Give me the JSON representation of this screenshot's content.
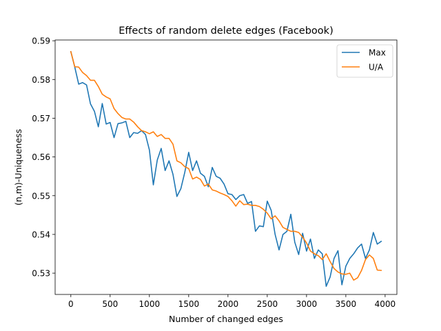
{
  "chart_data": {
    "type": "line",
    "title": "Effects of random delete edges (Facebook)",
    "xlabel": "Number of changed edges",
    "ylabel": "(n,m)-Uniqueness",
    "xlim": [
      -200,
      4150
    ],
    "ylim": [
      0.5245,
      0.5902
    ],
    "xticks": [
      0,
      500,
      1000,
      1500,
      2000,
      2500,
      3000,
      3500,
      4000
    ],
    "xtick_labels": [
      "0",
      "500",
      "1000",
      "1500",
      "2000",
      "2500",
      "3000",
      "3500",
      "4000"
    ],
    "yticks": [
      0.53,
      0.54,
      0.55,
      0.56,
      0.57,
      0.58,
      0.59
    ],
    "ytick_labels": [
      "0.53",
      "0.54",
      "0.55",
      "0.56",
      "0.57",
      "0.58",
      "0.59"
    ],
    "grid": false,
    "legend_position": "upper right",
    "x": [
      0,
      50,
      100,
      150,
      200,
      250,
      300,
      350,
      400,
      450,
      500,
      550,
      600,
      650,
      700,
      750,
      800,
      850,
      900,
      950,
      1000,
      1050,
      1100,
      1150,
      1200,
      1250,
      1300,
      1350,
      1400,
      1450,
      1500,
      1550,
      1600,
      1650,
      1700,
      1750,
      1800,
      1850,
      1900,
      1950,
      2000,
      2050,
      2100,
      2150,
      2200,
      2250,
      2300,
      2350,
      2400,
      2450,
      2500,
      2550,
      2600,
      2650,
      2700,
      2750,
      2800,
      2850,
      2900,
      2950,
      3000,
      3050,
      3100,
      3150,
      3200,
      3250,
      3300,
      3350,
      3400,
      3450,
      3500,
      3550,
      3600,
      3650,
      3700,
      3750,
      3800,
      3850,
      3900,
      3950
    ],
    "series": [
      {
        "name": "Max",
        "color": "#1f77b4",
        "values": [
          0.5872,
          0.5832,
          0.5788,
          0.5792,
          0.5786,
          0.5737,
          0.5718,
          0.5678,
          0.5738,
          0.5685,
          0.5689,
          0.565,
          0.5686,
          0.5688,
          0.5692,
          0.565,
          0.5663,
          0.5661,
          0.5668,
          0.5658,
          0.5618,
          0.5528,
          0.5592,
          0.5622,
          0.5565,
          0.559,
          0.5555,
          0.5498,
          0.5518,
          0.556,
          0.5612,
          0.5565,
          0.559,
          0.5558,
          0.555,
          0.5523,
          0.5573,
          0.555,
          0.5545,
          0.553,
          0.5505,
          0.5503,
          0.549,
          0.55,
          0.5503,
          0.548,
          0.5485,
          0.5408,
          0.5422,
          0.542,
          0.5486,
          0.5462,
          0.54,
          0.536,
          0.54,
          0.5408,
          0.5452,
          0.538,
          0.5348,
          0.5403,
          0.5357,
          0.5388,
          0.5338,
          0.536,
          0.535,
          0.5266,
          0.529,
          0.5338,
          0.5358,
          0.527,
          0.5318,
          0.5338,
          0.535,
          0.5365,
          0.5375,
          0.5338,
          0.536,
          0.5405,
          0.5375,
          0.5382
        ]
      },
      {
        "name": "U/A",
        "color": "#ff7f0e",
        "values": [
          0.5872,
          0.5833,
          0.5832,
          0.5818,
          0.581,
          0.5798,
          0.5798,
          0.5782,
          0.5762,
          0.5755,
          0.575,
          0.5725,
          0.5712,
          0.5702,
          0.5698,
          0.5698,
          0.569,
          0.5678,
          0.5668,
          0.5665,
          0.566,
          0.5665,
          0.5653,
          0.5658,
          0.5648,
          0.5648,
          0.5633,
          0.559,
          0.5585,
          0.5575,
          0.557,
          0.5543,
          0.5548,
          0.5542,
          0.5525,
          0.553,
          0.5515,
          0.5512,
          0.5507,
          0.5503,
          0.5498,
          0.5487,
          0.5473,
          0.5487,
          0.5477,
          0.5478,
          0.5475,
          0.5475,
          0.5472,
          0.5465,
          0.5455,
          0.544,
          0.5448,
          0.5435,
          0.5418,
          0.5413,
          0.5408,
          0.5408,
          0.5405,
          0.5393,
          0.5378,
          0.5357,
          0.535,
          0.5345,
          0.5335,
          0.535,
          0.533,
          0.5312,
          0.5303,
          0.5298,
          0.5297,
          0.53,
          0.5282,
          0.5288,
          0.5307,
          0.5335,
          0.5347,
          0.5338,
          0.5308,
          0.5307
        ]
      }
    ]
  }
}
